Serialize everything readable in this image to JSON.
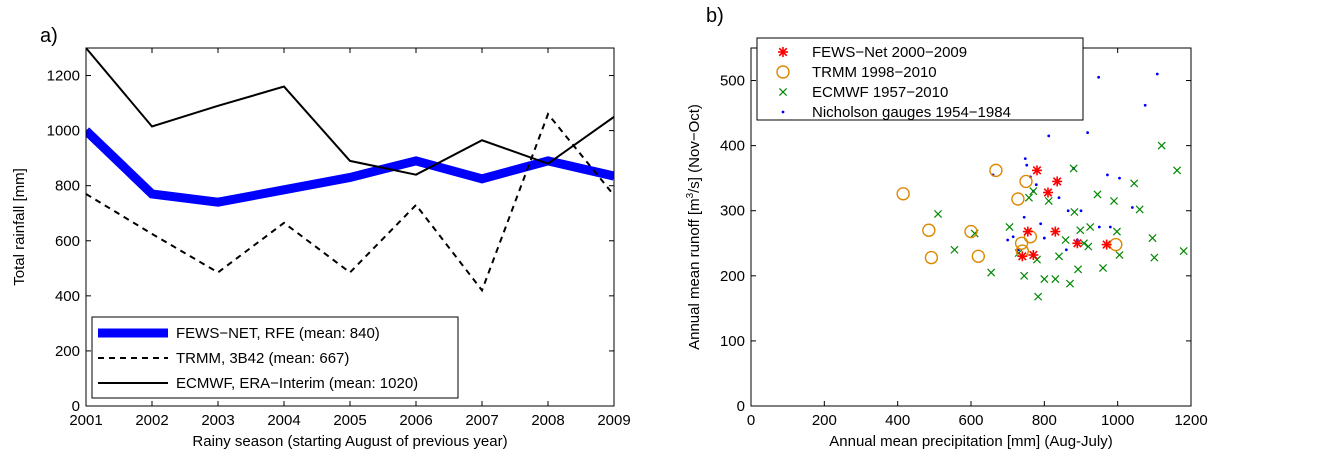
{
  "chart_data": [
    {
      "panel_label": "a)",
      "type": "line",
      "xlabel": "Rainy season (starting August of previous year)",
      "ylabel": "Total rainfall [mm]",
      "xlim": [
        2001,
        2009
      ],
      "ylim": [
        0,
        1300
      ],
      "xticks": [
        2001,
        2002,
        2003,
        2004,
        2005,
        2006,
        2007,
        2008,
        2009
      ],
      "yticks": [
        0,
        200,
        400,
        600,
        800,
        1000,
        1200
      ],
      "legend_position": "bottom",
      "series": [
        {
          "name": "FEWS−NET, RFE (mean: 840)",
          "style": "thick-solid",
          "color": "#0000ff",
          "x": [
            2001,
            2002,
            2003,
            2004,
            2005,
            2006,
            2007,
            2008,
            2009
          ],
          "y": [
            1000,
            770,
            740,
            785,
            830,
            890,
            825,
            890,
            835
          ]
        },
        {
          "name": "TRMM, 3B42 (mean: 667)",
          "style": "dashed",
          "color": "#000000",
          "x": [
            2001,
            2002,
            2003,
            2004,
            2005,
            2006,
            2007,
            2008,
            2009
          ],
          "y": [
            770,
            625,
            485,
            665,
            485,
            730,
            420,
            1060,
            765
          ]
        },
        {
          "name": "ECMWF, ERA−Interim (mean: 1020)",
          "style": "solid",
          "color": "#000000",
          "x": [
            2001,
            2002,
            2003,
            2004,
            2005,
            2006,
            2007,
            2008,
            2009
          ],
          "y": [
            1300,
            1015,
            1090,
            1160,
            890,
            840,
            965,
            880,
            1050
          ]
        }
      ]
    },
    {
      "panel_label": "b)",
      "type": "scatter",
      "xlabel": "Annual mean precipitation [mm] (Aug-July)",
      "ylabel_prefix": "Annual mean runoff [m",
      "ylabel_sup": "3",
      "ylabel_suffix": "/s] (Nov−Oct)",
      "xlim": [
        0,
        1200
      ],
      "ylim": [
        0,
        550
      ],
      "xticks": [
        0,
        200,
        400,
        600,
        800,
        1000,
        1200
      ],
      "yticks": [
        0,
        100,
        200,
        300,
        400,
        500
      ],
      "legend_position": "top-left",
      "series": [
        {
          "name": "FEWS−Net 2000−2009",
          "marker": "asterisk",
          "color": "#ff0000",
          "points": [
            [
              755,
              268
            ],
            [
              780,
              362
            ],
            [
              810,
              328
            ],
            [
              835,
              345
            ],
            [
              830,
              268
            ],
            [
              890,
              250
            ],
            [
              970,
              248
            ],
            [
              740,
              230
            ],
            [
              770,
              232
            ]
          ]
        },
        {
          "name": "TRMM 1998−2010",
          "marker": "circle",
          "color": "#dd8800",
          "points": [
            [
              415,
              326
            ],
            [
              485,
              270
            ],
            [
              492,
              228
            ],
            [
              600,
              268
            ],
            [
              620,
              230
            ],
            [
              668,
              362
            ],
            [
              728,
              318
            ],
            [
              750,
              345
            ],
            [
              738,
              250
            ],
            [
              762,
              260
            ],
            [
              740,
              238
            ],
            [
              995,
              248
            ]
          ]
        },
        {
          "name": "ECMWF 1957−2010",
          "marker": "x",
          "color": "#008800",
          "points": [
            [
              510,
              295
            ],
            [
              555,
              240
            ],
            [
              610,
              265
            ],
            [
              655,
              205
            ],
            [
              705,
              275
            ],
            [
              730,
              235
            ],
            [
              745,
              200
            ],
            [
              758,
              320
            ],
            [
              770,
              330
            ],
            [
              780,
              225
            ],
            [
              783,
              168
            ],
            [
              800,
              195
            ],
            [
              812,
              315
            ],
            [
              830,
              195
            ],
            [
              840,
              230
            ],
            [
              858,
              255
            ],
            [
              870,
              188
            ],
            [
              880,
              365
            ],
            [
              882,
              298
            ],
            [
              892,
              210
            ],
            [
              898,
              270
            ],
            [
              908,
              250
            ],
            [
              920,
              245
            ],
            [
              925,
              275
            ],
            [
              945,
              325
            ],
            [
              960,
              212
            ],
            [
              990,
              315
            ],
            [
              998,
              268
            ],
            [
              1005,
              232
            ],
            [
              1045,
              342
            ],
            [
              1060,
              302
            ],
            [
              1095,
              258
            ],
            [
              1100,
              228
            ],
            [
              1120,
              400
            ],
            [
              1162,
              362
            ],
            [
              1180,
              238
            ]
          ]
        },
        {
          "name": "Nicholson gauges 1954−1984",
          "marker": "dot",
          "color": "#0000ff",
          "points": [
            [
              660,
              355
            ],
            [
              700,
              255
            ],
            [
              730,
              240
            ],
            [
              748,
              380
            ],
            [
              752,
              370
            ],
            [
              762,
              352
            ],
            [
              770,
              330
            ],
            [
              778,
              340
            ],
            [
              800,
              258
            ],
            [
              812,
              415
            ],
            [
              840,
              320
            ],
            [
              865,
              300
            ],
            [
              880,
              365
            ],
            [
              890,
              255
            ],
            [
              918,
              420
            ],
            [
              948,
              505
            ],
            [
              972,
              355
            ],
            [
              980,
              275
            ],
            [
              1005,
              350
            ],
            [
              1040,
              305
            ],
            [
              1075,
              462
            ],
            [
              1108,
              510
            ],
            [
              715,
              260
            ],
            [
              745,
              290
            ],
            [
              790,
              280
            ],
            [
              860,
              240
            ],
            [
              900,
              300
            ],
            [
              950,
              275
            ]
          ]
        }
      ]
    }
  ]
}
